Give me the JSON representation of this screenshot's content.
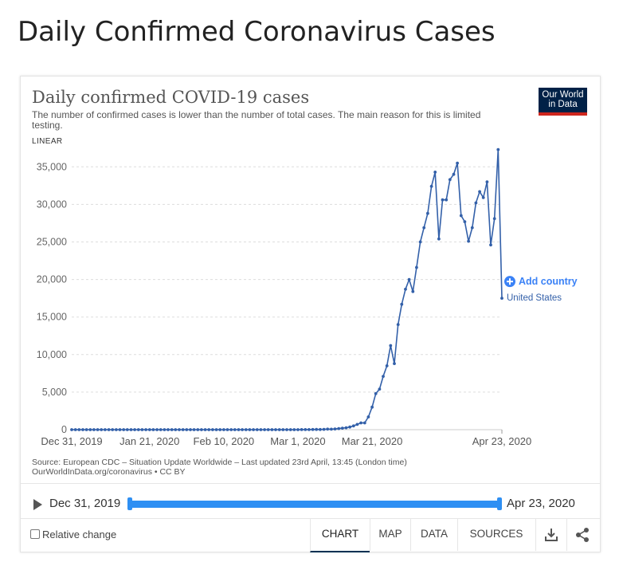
{
  "page": {
    "title": "Daily Confirmed Coronavirus Cases"
  },
  "chart_header": {
    "title": "Daily confirmed COVID-19 cases",
    "subtitle": "The number of confirmed cases is lower than the number of total cases. The main reason for this is limited testing.",
    "scale": "LINEAR",
    "logo_line1": "Our World",
    "logo_line2": "in Data"
  },
  "legend": {
    "add_country": "Add country",
    "entity": "United States"
  },
  "sources": {
    "line1": "Source: European CDC – Situation Update Worldwide – Last updated 23rd April, 13:45 (London time)",
    "line2": "OurWorldInData.org/coronavirus • CC BY"
  },
  "timeline": {
    "start": "Dec 31, 2019",
    "end": "Apr 23, 2020"
  },
  "controls": {
    "relative_change": "Relative change",
    "tabs": [
      "CHART",
      "MAP",
      "DATA",
      "SOURCES"
    ],
    "active_tab": "CHART"
  },
  "colors": {
    "series": "#3360a9",
    "accent": "#2e8ff3",
    "logo_bg": "#002147",
    "logo_bar": "#ce261e"
  },
  "icons": [
    "play-icon",
    "add-icon",
    "download-icon",
    "share-icon"
  ],
  "chart_data": {
    "type": "line",
    "x_tick_labels": [
      "Dec 31, 2019",
      "Jan 21, 2020",
      "Feb 10, 2020",
      "Mar 1, 2020",
      "Mar 21, 2020",
      "Apr 23, 2020"
    ],
    "y_ticks": [
      0,
      5000,
      10000,
      15000,
      20000,
      25000,
      30000,
      35000
    ],
    "ylim": [
      0,
      37500
    ],
    "grid": "horizontal dashed",
    "series": [
      {
        "name": "United States",
        "start_date": "2019-12-31",
        "values": [
          0,
          0,
          0,
          0,
          0,
          0,
          0,
          0,
          0,
          0,
          0,
          0,
          0,
          0,
          0,
          0,
          0,
          0,
          0,
          0,
          0,
          1,
          0,
          1,
          0,
          1,
          1,
          0,
          0,
          0,
          0,
          1,
          1,
          2,
          0,
          0,
          0,
          0,
          0,
          0,
          0,
          1,
          0,
          0,
          0,
          0,
          0,
          0,
          1,
          0,
          0,
          0,
          0,
          1,
          0,
          1,
          0,
          1,
          2,
          3,
          2,
          4,
          6,
          10,
          13,
          20,
          30,
          20,
          40,
          70,
          60,
          100,
          150,
          200,
          250,
          350,
          500,
          700,
          900,
          900,
          1700,
          3000,
          4800,
          5400,
          7100,
          8500,
          11200,
          8800,
          14000,
          16700,
          18700,
          20000,
          18400,
          21600,
          25000,
          26900,
          28800,
          32400,
          34300,
          25400,
          30600,
          30600,
          33300,
          34000,
          35500,
          28500,
          27700,
          25100,
          26900,
          30200,
          31700,
          30900,
          33000,
          24600,
          28100,
          37300,
          17500
        ]
      }
    ]
  }
}
